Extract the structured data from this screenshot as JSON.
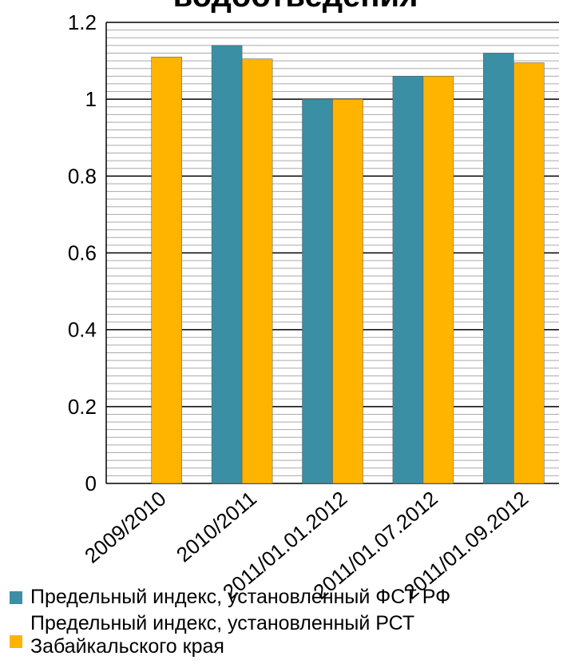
{
  "chart_data": {
    "type": "bar",
    "title": "водоотведения",
    "categories": [
      "2009/2010",
      "2010/2011",
      "2011/01.01.2012",
      "2011/01.07.2012",
      "2011/01.09.2012"
    ],
    "series": [
      {
        "name": "Предельный индекс, установленный ФСТ РФ",
        "color": "#3a8fa5",
        "values": [
          null,
          1.14,
          1.0,
          1.06,
          1.12
        ]
      },
      {
        "name": "Предельный индекс, установленный РСТ Забайкальского края",
        "color": "#ffb400",
        "values": [
          1.11,
          1.105,
          1.0,
          1.06,
          1.095
        ]
      }
    ],
    "ylim": [
      0,
      1.2
    ],
    "yticks": [
      0,
      0.2,
      0.4,
      0.6,
      0.8,
      1,
      1.2
    ],
    "minor_yticks": [
      0.02,
      0.04,
      0.06,
      0.08,
      0.1,
      0.12,
      0.14,
      0.16,
      0.18,
      0.22,
      0.24,
      0.26,
      0.28,
      0.3,
      0.32,
      0.34,
      0.36,
      0.38,
      0.42,
      0.44,
      0.46,
      0.48,
      0.5,
      0.52,
      0.54,
      0.56,
      0.58,
      0.62,
      0.64,
      0.66,
      0.68,
      0.7,
      0.72,
      0.74,
      0.76,
      0.78,
      0.82,
      0.84,
      0.86,
      0.88,
      0.9,
      0.92,
      0.94,
      0.96,
      0.98,
      1.02,
      1.04,
      1.06,
      1.08,
      1.1,
      1.12,
      1.14,
      1.16,
      1.18
    ],
    "grid": true,
    "legend": "bottom"
  }
}
